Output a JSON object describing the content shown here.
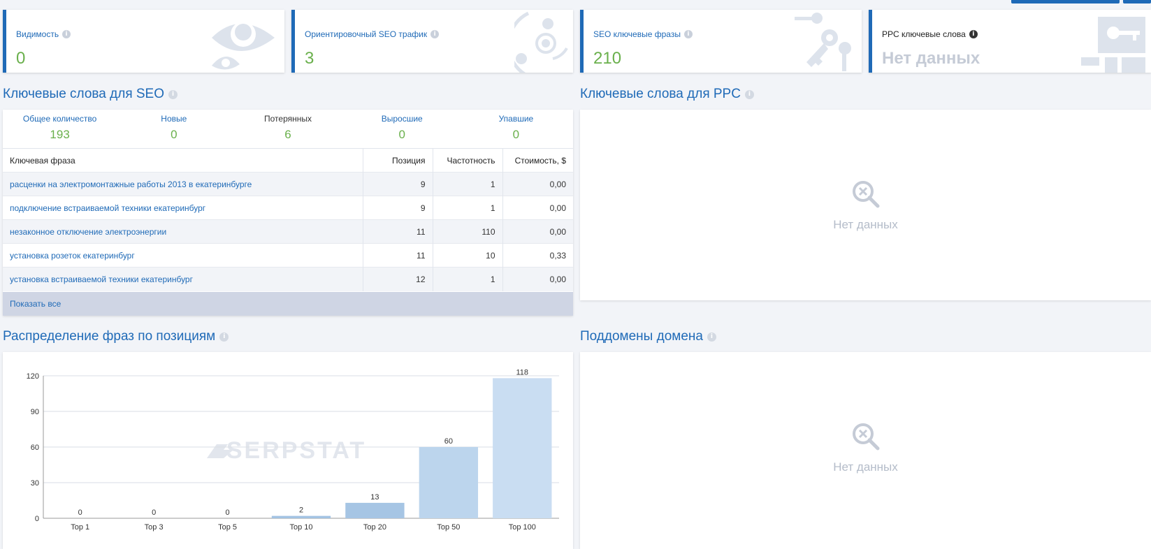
{
  "cards": [
    {
      "title": "Видимость",
      "value": "0",
      "icon": "eye-icon"
    },
    {
      "title": "Ориентировочный SEO трафик",
      "value": "3",
      "icon": "traffic-icon"
    },
    {
      "title": "SEO ключевые фразы",
      "value": "210",
      "icon": "keys-icon"
    },
    {
      "title": "PPC ключевые слова",
      "value": "Нет данных",
      "icon": "ppc-key-icon"
    }
  ],
  "seo_keywords": {
    "title": "Ключевые слова для SEO",
    "summary": [
      {
        "label": "Общее количество",
        "value": "193"
      },
      {
        "label": "Новые",
        "value": "0"
      },
      {
        "label": "Потерянных",
        "value": "6"
      },
      {
        "label": "Выросшие",
        "value": "0"
      },
      {
        "label": "Упавшие",
        "value": "0"
      }
    ],
    "columns": [
      "Ключевая фраза",
      "Позиция",
      "Частотность",
      "Стоимость, $"
    ],
    "rows": [
      [
        "расценки на электромонтажные работы 2013 в екатеринбурге",
        "9",
        "1",
        "0,00"
      ],
      [
        "подключение встраиваемой техники екатеринбург",
        "9",
        "1",
        "0,00"
      ],
      [
        "незаконное отключение электроэнергии",
        "11",
        "110",
        "0,00"
      ],
      [
        "установка розеток екатеринбург",
        "11",
        "10",
        "0,33"
      ],
      [
        "установка встраиваемой техники екатеринбург",
        "12",
        "1",
        "0,00"
      ]
    ],
    "show_all": "Показать все"
  },
  "ppc_keywords": {
    "title": "Ключевые слова для PPC",
    "empty": "Нет данных"
  },
  "distribution": {
    "title": "Распределение фраз по позициям",
    "watermark": "SERPSTAT"
  },
  "subdomains": {
    "title": "Поддомены домена",
    "empty": "Нет данных"
  },
  "chart_data": {
    "type": "bar",
    "categories": [
      "Top 1",
      "Top 3",
      "Top 5",
      "Top 10",
      "Top 20",
      "Top 50",
      "Top 100"
    ],
    "values": [
      0,
      0,
      0,
      2,
      13,
      60,
      118
    ],
    "ylim": [
      0,
      120
    ],
    "yticks": [
      0,
      30,
      60,
      90,
      120
    ],
    "grid": true,
    "colors": [
      "#a3c3e3",
      "#a3c3e3",
      "#a3c3e3",
      "#a3c3e3",
      "#a6c5e4",
      "#bcd5ed",
      "#c9ddf2"
    ]
  }
}
